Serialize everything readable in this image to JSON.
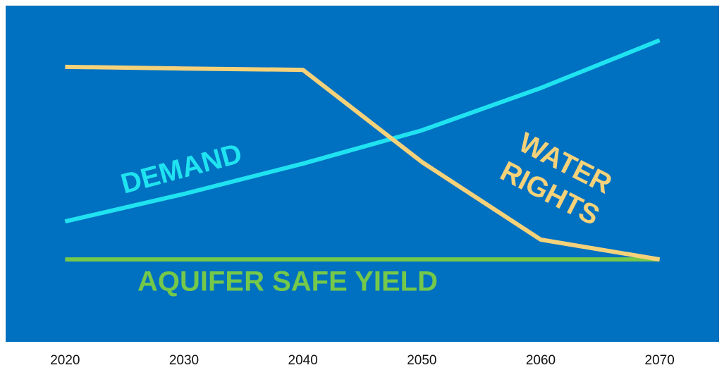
{
  "chart_data": {
    "type": "line",
    "x": [
      2020,
      2030,
      2040,
      2050,
      2060,
      2070
    ],
    "xlim": [
      2015,
      2075
    ],
    "xticks": [
      2020,
      2030,
      2040,
      2050,
      2060,
      2070
    ],
    "ylim": [
      0,
      100
    ],
    "background": "#0070c0",
    "series": [
      {
        "name": "DEMAND",
        "color": "#1fe3f0",
        "values": [
          35.8,
          44,
          53,
          62.9,
          75.5,
          89.7
        ]
      },
      {
        "name": "WATER RIGHTS",
        "color": "#f5d27a",
        "values": [
          81.8,
          81.3,
          80.9,
          53.5,
          30.4,
          24.5
        ]
      },
      {
        "name": "AQUIFER SAFE YIELD",
        "color": "#74c84a",
        "values": [
          24.5,
          24.5,
          24.5,
          24.5,
          24.5,
          24.5
        ]
      }
    ]
  }
}
